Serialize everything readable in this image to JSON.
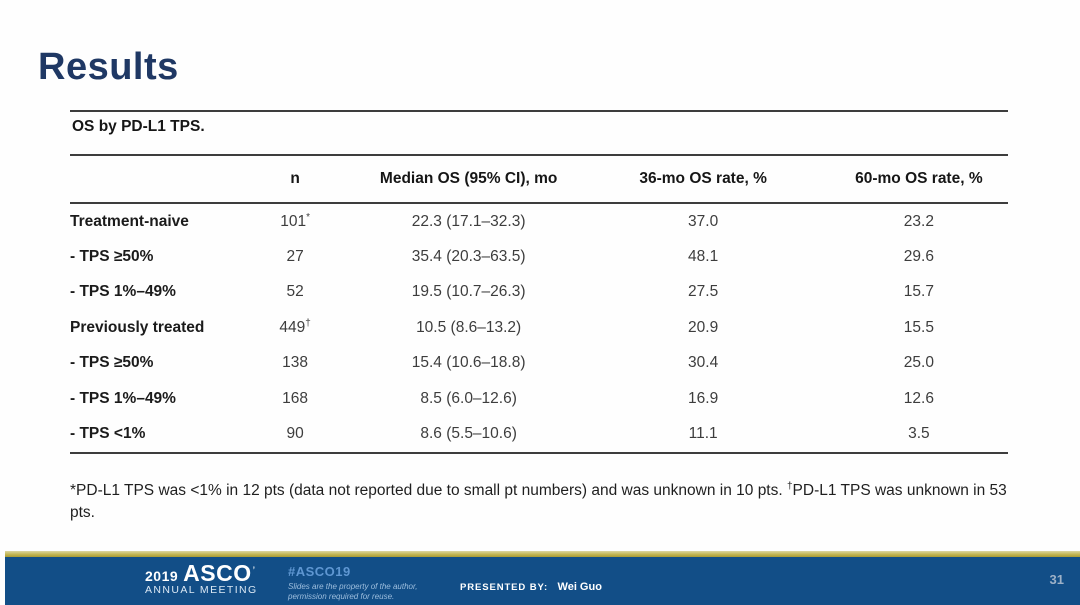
{
  "slide": {
    "title": "Results"
  },
  "table": {
    "caption": "OS by PD-L1 TPS.",
    "columns": [
      "",
      "n",
      "Median OS (95% CI), mo",
      "36-mo OS rate, %",
      "60-mo OS rate, %"
    ],
    "rows": [
      {
        "label": "Treatment-naive",
        "n": "101",
        "n_sup": "*",
        "median": "22.3 (17.1–32.3)",
        "os36": "37.0",
        "os60": "23.2"
      },
      {
        "label": "- TPS ≥50%",
        "n": "27",
        "n_sup": "",
        "median": "35.4 (20.3–63.5)",
        "os36": "48.1",
        "os60": "29.6"
      },
      {
        "label": "- TPS 1%–49%",
        "n": "52",
        "n_sup": "",
        "median": "19.5 (10.7–26.3)",
        "os36": "27.5",
        "os60": "15.7"
      },
      {
        "label": "Previously treated",
        "n": "449",
        "n_sup": "†",
        "median": "10.5 (8.6–13.2)",
        "os36": "20.9",
        "os60": "15.5"
      },
      {
        "label": "- TPS ≥50%",
        "n": "138",
        "n_sup": "",
        "median": "15.4 (10.6–18.8)",
        "os36": "30.4",
        "os60": "25.0"
      },
      {
        "label": "- TPS 1%–49%",
        "n": "168",
        "n_sup": "",
        "median": "8.5 (6.0–12.6)",
        "os36": "16.9",
        "os60": "12.6"
      },
      {
        "label": "- TPS <1%",
        "n": "90",
        "n_sup": "",
        "median": "8.6 (5.5–10.6)",
        "os36": "11.1",
        "os60": "3.5"
      }
    ]
  },
  "footnote": {
    "segments": [
      {
        "text": "*PD-L1 TPS was <1% in 12 pts (data not reported due to small pt numbers) and was unknown in 10 pts. "
      },
      {
        "sup": "†"
      },
      {
        "text": "PD-L1 TPS was unknown in 53 pts."
      }
    ]
  },
  "footer": {
    "year": "2019",
    "org": "ASCO",
    "org_mark": "’",
    "subtitle": "ANNUAL MEETING",
    "hashtag": "#ASCO19",
    "disclaimer_line1": "Slides are the property of the author,",
    "disclaimer_line2": "permission required for reuse.",
    "presented_by_label": "PRESENTED BY:",
    "presenter": "Wei Guo",
    "page_number": "31",
    "colors": {
      "title_navy": "#1f3864",
      "footer_blue": "#124e87",
      "accent_gold": "#c3b654",
      "hashtag_blue": "#5f97d2"
    }
  }
}
